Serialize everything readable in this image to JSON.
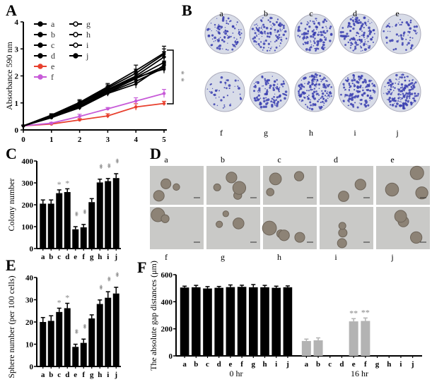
{
  "panels": {
    "A": "A",
    "B": "B",
    "C": "C",
    "D": "D",
    "E": "E",
    "F": "F"
  },
  "colors": {
    "black": "#000000",
    "e": "#e8402e",
    "f": "#c75ad8",
    "gray_bar": "#b3b3b3",
    "star": "#888888",
    "dish": "#d8dce8",
    "colony": "#3b3fb0"
  },
  "chart_data": [
    {
      "id": "A",
      "type": "line",
      "xlabel": "",
      "ylabel": "Absorbance 590 nm",
      "xlim": [
        0,
        5
      ],
      "ylim": [
        0,
        4
      ],
      "xticks": [
        0,
        1,
        2,
        3,
        4,
        5
      ],
      "yticks": [
        0,
        1,
        2,
        3,
        4
      ],
      "legend": "top-left",
      "annotation": "**",
      "x": [
        0,
        1,
        2,
        3,
        4,
        5
      ],
      "series": [
        {
          "name": "a",
          "marker": "circle",
          "values": [
            0.15,
            0.55,
            1.02,
            1.6,
            2.2,
            2.85
          ],
          "err": [
            0.03,
            0.05,
            0.1,
            0.12,
            0.2,
            0.25
          ]
        },
        {
          "name": "b",
          "marker": "square",
          "values": [
            0.15,
            0.52,
            0.98,
            1.55,
            2.1,
            2.8
          ],
          "err": [
            0.03,
            0.05,
            0.1,
            0.12,
            0.15,
            0.2
          ]
        },
        {
          "name": "c",
          "marker": "triangle",
          "values": [
            0.15,
            0.5,
            0.95,
            1.5,
            2.0,
            2.7
          ],
          "err": [
            0.03,
            0.05,
            0.08,
            0.1,
            0.15,
            0.2
          ]
        },
        {
          "name": "d",
          "marker": "tri-down",
          "values": [
            0.15,
            0.48,
            0.9,
            1.45,
            1.95,
            2.5
          ],
          "err": [
            0.03,
            0.05,
            0.08,
            0.1,
            0.15,
            0.2
          ]
        },
        {
          "name": "e",
          "marker": "circle",
          "color": "e",
          "values": [
            0.15,
            0.22,
            0.37,
            0.52,
            0.85,
            0.98
          ],
          "err": [
            0.02,
            0.03,
            0.05,
            0.08,
            0.12,
            0.08
          ]
        },
        {
          "name": "f",
          "marker": "triangle",
          "color": "f",
          "values": [
            0.15,
            0.25,
            0.5,
            0.78,
            1.07,
            1.35
          ],
          "err": [
            0.02,
            0.03,
            0.08,
            0.05,
            0.12,
            0.15
          ]
        },
        {
          "name": "g",
          "marker": "open-square",
          "values": [
            0.15,
            0.5,
            0.88,
            1.4,
            1.9,
            2.35
          ],
          "err": [
            0.03,
            0.05,
            0.08,
            0.1,
            0.2,
            0.15
          ]
        },
        {
          "name": "h",
          "marker": "open-triangle",
          "values": [
            0.15,
            0.47,
            0.85,
            1.38,
            1.8,
            2.3
          ],
          "err": [
            0.03,
            0.05,
            0.08,
            0.1,
            0.15,
            0.15
          ]
        },
        {
          "name": "i",
          "marker": "open-tri-down",
          "values": [
            0.15,
            0.46,
            0.82,
            1.35,
            1.7,
            2.4
          ],
          "err": [
            0.03,
            0.05,
            0.08,
            0.1,
            0.15,
            0.15
          ]
        },
        {
          "name": "j",
          "marker": "diamond",
          "values": [
            0.15,
            0.45,
            0.85,
            1.5,
            1.95,
            2.25
          ],
          "err": [
            0.03,
            0.05,
            0.08,
            0.1,
            0.15,
            0.15
          ]
        }
      ]
    },
    {
      "id": "C",
      "type": "bar",
      "ylabel": "Colony number",
      "ylim": [
        0,
        400
      ],
      "yticks": [
        0,
        100,
        200,
        300,
        400
      ],
      "categories": [
        "a",
        "b",
        "c",
        "d",
        "e",
        "f",
        "g",
        "h",
        "i",
        "j"
      ],
      "values": [
        205,
        205,
        253,
        258,
        88,
        97,
        212,
        302,
        308,
        322
      ],
      "err": [
        17,
        17,
        15,
        15,
        12,
        13,
        16,
        15,
        12,
        20
      ],
      "stars": [
        "",
        "",
        "*",
        "*",
        "**",
        "**",
        "",
        "**",
        "**",
        "**"
      ]
    },
    {
      "id": "E",
      "type": "bar",
      "ylabel": "Sphere number (per 100 cells)",
      "ylim": [
        0,
        40
      ],
      "yticks": [
        0,
        10,
        20,
        30,
        40
      ],
      "categories": [
        "a",
        "b",
        "c",
        "d",
        "e",
        "f",
        "g",
        "h",
        "i",
        "j"
      ],
      "values": [
        20,
        20.5,
        24.5,
        26.2,
        8.8,
        10.6,
        21.6,
        28.1,
        30.9,
        32.8
      ],
      "err": [
        2,
        2.3,
        1.7,
        2.2,
        1.2,
        1.7,
        1.6,
        1.8,
        2.7,
        2.8
      ],
      "stars": [
        "",
        "",
        "*",
        "*",
        "**",
        "**",
        "",
        "**",
        "**",
        "**"
      ]
    },
    {
      "id": "F",
      "type": "bar",
      "ylabel": "The absolute gap distances (μm)",
      "ylim": [
        0,
        600
      ],
      "yticks": [
        0,
        200,
        400,
        600
      ],
      "groups": [
        {
          "name": "0 hr",
          "color": "black",
          "categories": [
            "a",
            "b",
            "c",
            "d",
            "e",
            "f",
            "g",
            "h",
            "i",
            "j"
          ],
          "values": [
            505,
            507,
            498,
            503,
            508,
            510,
            507,
            507,
            503,
            507
          ],
          "err": [
            10,
            14,
            14,
            10,
            16,
            12,
            20,
            14,
            12,
            10
          ],
          "stars": [
            "",
            "",
            "",
            "",
            "",
            "",
            "",
            "",
            "",
            ""
          ]
        },
        {
          "name": "16  hr",
          "color": "gray_bar",
          "categories": [
            "a",
            "b",
            "c",
            "d",
            "e",
            "f",
            "g",
            "h",
            "i",
            "j"
          ],
          "values": [
            110,
            115,
            0,
            0,
            255,
            258,
            0,
            0,
            0,
            0
          ],
          "err": [
            14,
            18,
            0,
            0,
            20,
            22,
            0,
            0,
            0,
            0
          ],
          "stars": [
            "",
            "",
            "",
            "",
            "**",
            "**",
            "",
            "",
            "",
            ""
          ]
        }
      ]
    }
  ],
  "images": {
    "B": {
      "labels": [
        "a",
        "b",
        "c",
        "d",
        "e",
        "f",
        "g",
        "h",
        "i",
        "j"
      ],
      "density": [
        0.55,
        0.6,
        0.75,
        0.7,
        0.35,
        0.25,
        0.6,
        0.85,
        0.8,
        0.9
      ]
    },
    "D": {
      "labels": [
        "a",
        "b",
        "c",
        "d",
        "e",
        "f",
        "g",
        "h",
        "i",
        "j"
      ],
      "spheres": [
        3,
        4,
        3,
        2,
        3,
        2,
        3,
        4,
        3,
        3
      ]
    }
  }
}
